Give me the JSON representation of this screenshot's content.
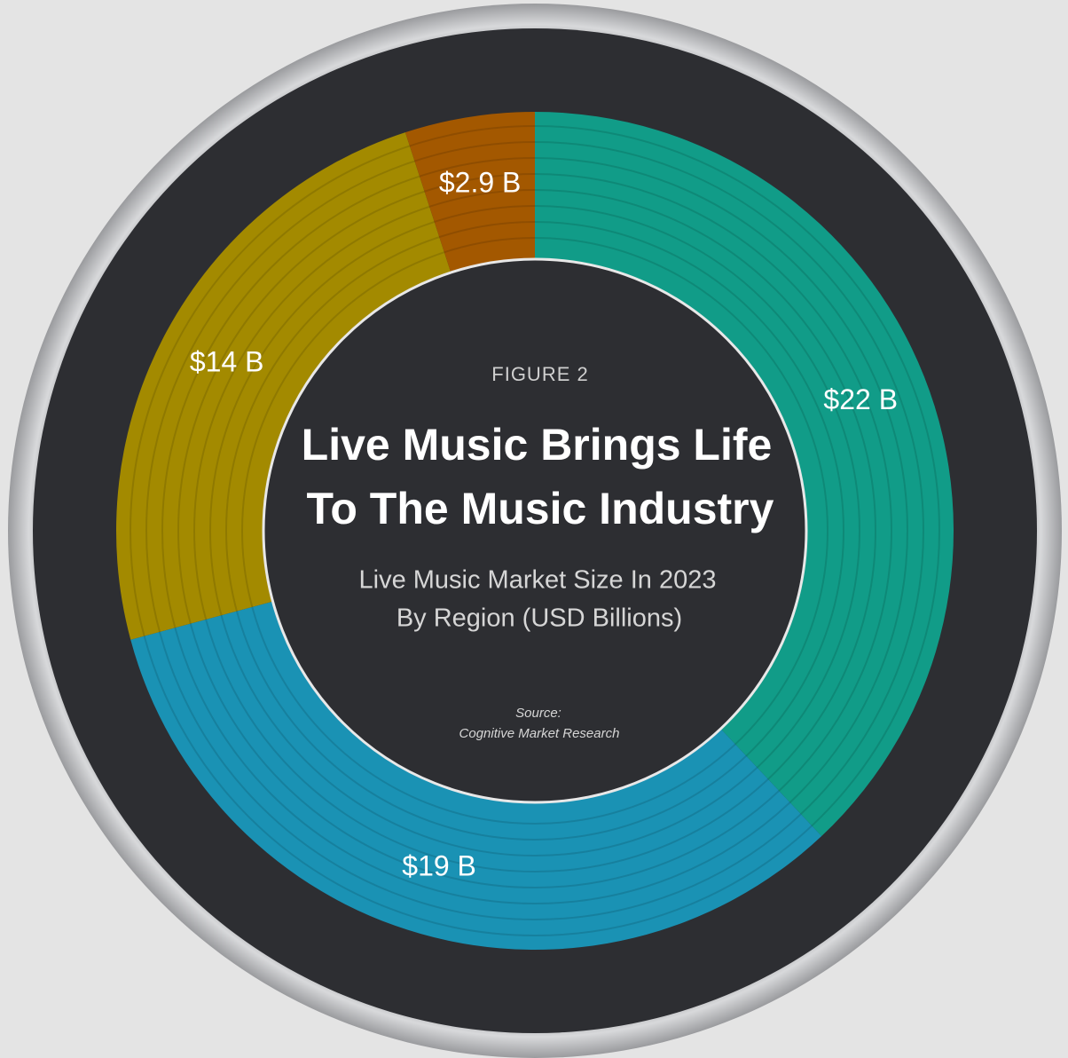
{
  "chart_data": {
    "type": "donut",
    "kicker": "FIGURE 2",
    "title": [
      "Live Music Brings Life",
      "To The Music Industry"
    ],
    "subtitle": [
      "Live Music Market Size In 2023",
      "By Region (USD Billions)"
    ],
    "source_label": "Source:",
    "source": "Cognitive Market Research",
    "values": [
      22,
      19,
      14,
      2.9
    ],
    "value_labels": [
      "$22 B",
      "$19 B",
      "$14 B",
      "$2.9 B"
    ],
    "colors": [
      "#119c88",
      "#1a92b4",
      "#a38a00",
      "#a35800"
    ]
  }
}
